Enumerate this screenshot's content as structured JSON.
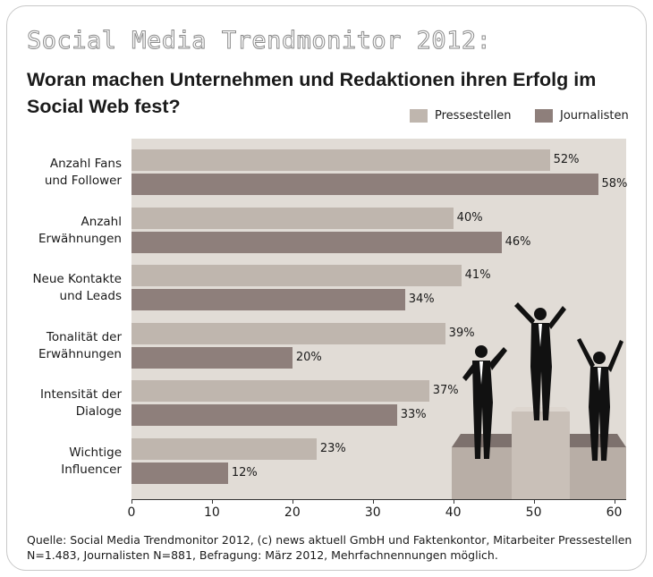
{
  "header": {
    "kicker": "Social Media Trendmonitor 2012:",
    "title": "Woran machen Unternehmen und Redaktionen ihren Erfolg im Social Web fest?"
  },
  "colors": {
    "pressestellen": "#bfb6ae",
    "journalisten": "#8e7f7b",
    "plot_bg": "#e1dcd6"
  },
  "chart_data": {
    "type": "bar",
    "orientation": "horizontal",
    "categories": [
      "Anzahl Fans und Follower",
      "Anzahl Erwähnungen",
      "Neue Kontakte und Leads",
      "Tonalität der Erwähnungen",
      "Intensität der Dialoge",
      "Wichtige Influencer"
    ],
    "category_lines": [
      [
        "Anzahl Fans",
        "und Follower"
      ],
      [
        "Anzahl",
        "Erwähnungen"
      ],
      [
        "Neue Kontakte",
        "und Leads"
      ],
      [
        "Tonalität der",
        "Erwähnungen"
      ],
      [
        "Intensität der",
        "Dialoge"
      ],
      [
        "Wichtige",
        "Influencer"
      ]
    ],
    "series": [
      {
        "name": "Pressestellen",
        "values": [
          52,
          40,
          41,
          39,
          37,
          23
        ]
      },
      {
        "name": "Journalisten",
        "values": [
          58,
          46,
          34,
          20,
          33,
          12
        ]
      }
    ],
    "value_labels": [
      [
        "52%",
        "58%"
      ],
      [
        "40%",
        "46%"
      ],
      [
        "41%",
        "34%"
      ],
      [
        "39%",
        "20%"
      ],
      [
        "37%",
        "33%"
      ],
      [
        "23%",
        "12%"
      ]
    ],
    "xlim": [
      0,
      61.5
    ],
    "xticks": [
      "0",
      "10",
      "20",
      "30",
      "40",
      "50",
      "60"
    ],
    "legend_position": "top-right",
    "grid": false
  },
  "source": "Quelle: Social Media Trendmonitor 2012, (c) news aktuell GmbH und Faktenkontor, Mitarbeiter Pressestellen N=1.483, Journalisten N=881, Befragung: März 2012, Mehrfachnennungen möglich."
}
